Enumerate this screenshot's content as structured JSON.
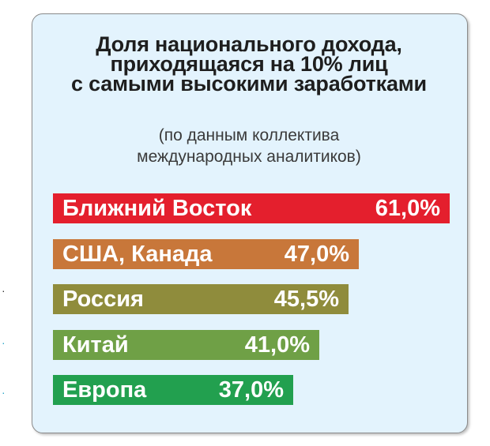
{
  "chart_data": {
    "type": "bar",
    "orientation": "horizontal",
    "title": "Доля национального дохода,\nприходящаяся на 10% лиц\nс самыми высокими заработками",
    "subtitle": "(по данным коллектива\nмеждународных аналитиков)",
    "categories": [
      "Ближний Восток",
      "США, Канада",
      "Россия",
      "Китай",
      "Европа"
    ],
    "values": [
      61.0,
      47.0,
      45.5,
      41.0,
      37.0
    ],
    "value_labels": [
      "61,0%",
      "47,0%",
      "45,5%",
      "41,0%",
      "37,0%"
    ],
    "colors": [
      "#e41f2d",
      "#c8773a",
      "#8f8c3c",
      "#6fa046",
      "#22a04f"
    ],
    "unit": "%",
    "grid": false,
    "legend": "none"
  },
  "colors": {
    "card_background": "#e3f3fd",
    "card_border": "#8a8a8a",
    "title": "#1e1e1e",
    "label_text": "#ffffff"
  }
}
